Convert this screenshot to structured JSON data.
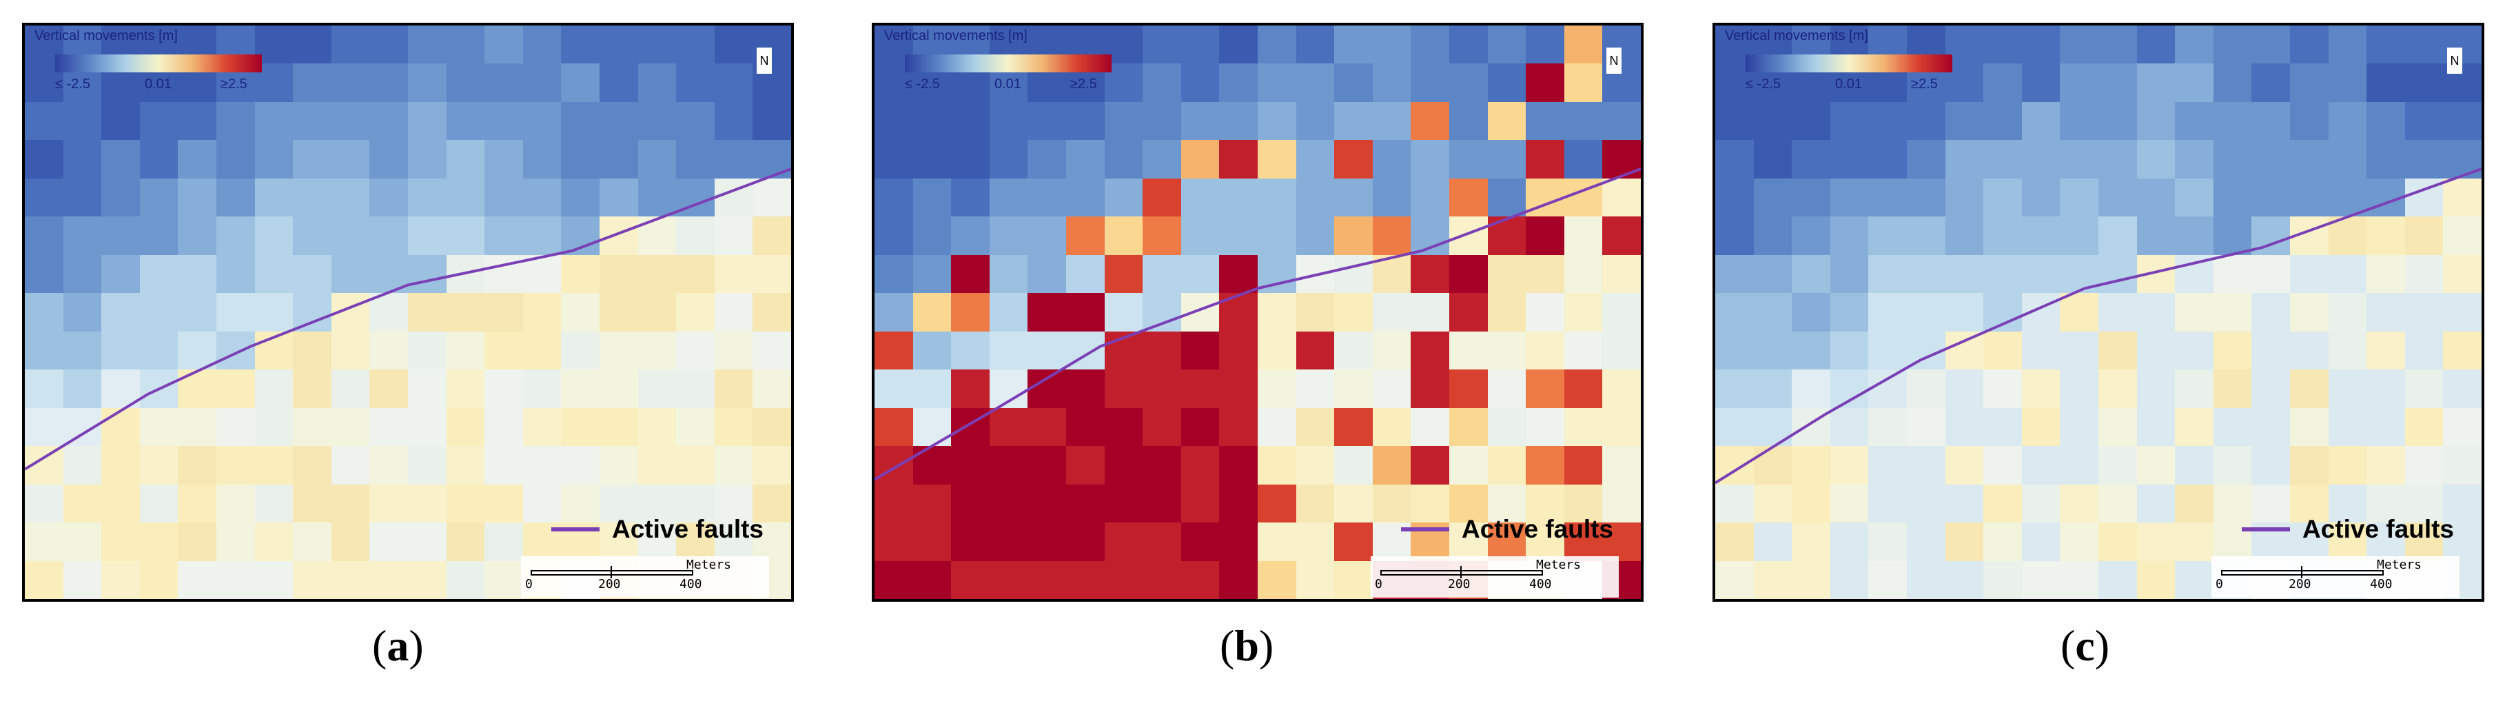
{
  "legend": {
    "title": "Vertical movements [m]",
    "min_label": "≤ -2.5",
    "mid_label": "0.01",
    "max_label": "≥2.5"
  },
  "north_arrow": "N",
  "fault_legend_label": "Active faults",
  "scale_bar": {
    "unit": "Meters",
    "ticks": [
      "0",
      "200",
      "400"
    ]
  },
  "colors": {
    "fault": "#7b3fb5",
    "low": "#2c3fa0",
    "mid": "#f6f3c8",
    "high": "#a50026"
  },
  "panels": [
    {
      "id": "a",
      "caption_open": "(",
      "caption_letter": "a",
      "caption_close": ")"
    },
    {
      "id": "b",
      "caption_open": "(",
      "caption_letter": "b",
      "caption_close": ")"
    },
    {
      "id": "c",
      "caption_open": "(",
      "caption_letter": "c",
      "caption_close": ")"
    }
  ]
}
